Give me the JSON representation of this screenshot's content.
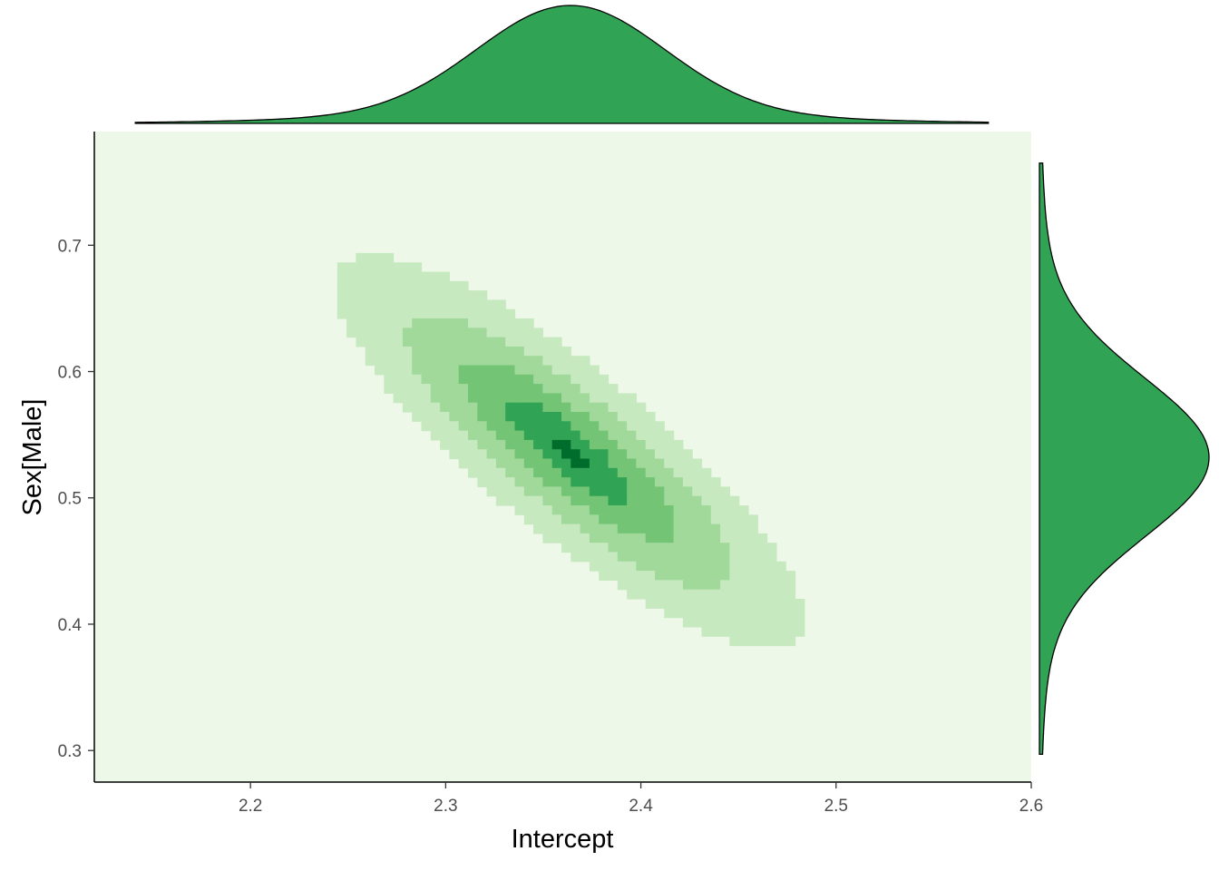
{
  "chart_data": {
    "type": "heatmap",
    "subtype": "2d-density-with-marginal-densities",
    "xlabel": "Intercept",
    "ylabel": "Sex[Male]",
    "xlim": [
      2.12,
      2.6
    ],
    "ylim": [
      0.275,
      0.79
    ],
    "x_ticks": [
      "2.2",
      "2.3",
      "2.4",
      "2.5",
      "2.6"
    ],
    "y_ticks": [
      "0.3",
      "0.4",
      "0.5",
      "0.6",
      "0.7"
    ],
    "x_tick_values": [
      2.2,
      2.3,
      2.4,
      2.5,
      2.6
    ],
    "y_tick_values": [
      0.3,
      0.4,
      0.5,
      0.6,
      0.7
    ],
    "grid": false,
    "density_levels": [
      {
        "level": 0,
        "color": "#edf8e9"
      },
      {
        "level": 1,
        "color": "#c7e9c0"
      },
      {
        "level": 2,
        "color": "#a1d99b"
      },
      {
        "level": 3,
        "color": "#74c476"
      },
      {
        "level": 4,
        "color": "#31a354"
      },
      {
        "level": 5,
        "color": "#006d2c"
      }
    ],
    "joint_distribution": {
      "mean_x": 2.363,
      "mean_y": 0.537,
      "sd_x": 0.048,
      "sd_y": 0.062,
      "correlation": -0.85
    },
    "top_marginal": {
      "variable": "Intercept",
      "x_range": [
        2.141,
        2.578
      ],
      "peak_x": 2.364,
      "fill": "#31a354",
      "outline": "#000000"
    },
    "right_marginal": {
      "variable": "Sex[Male]",
      "y_range": [
        0.297,
        0.765
      ],
      "peak_y": 0.532,
      "fill": "#31a354",
      "outline": "#000000"
    }
  }
}
